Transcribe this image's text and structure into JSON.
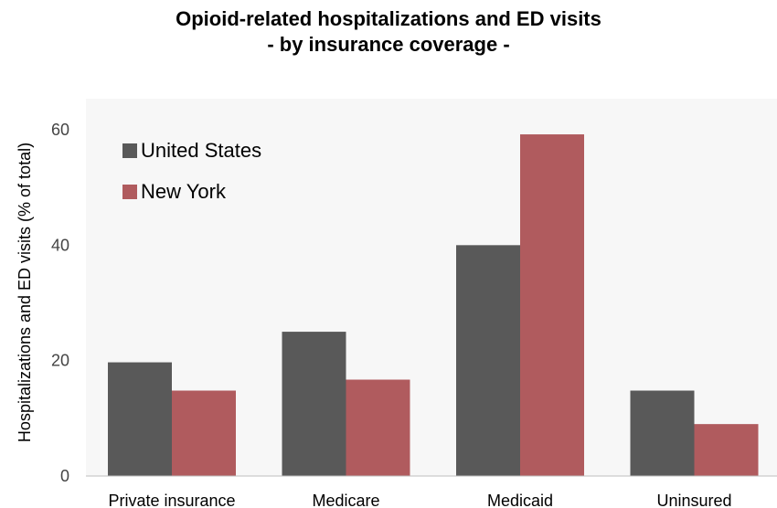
{
  "chart_data": {
    "type": "bar",
    "title": "Opioid-related hospitalizations and ED visits",
    "subtitle": "- by insurance coverage -",
    "xlabel": "",
    "ylabel": "Hospitalizations and ED visits (% of total)",
    "categories": [
      "Private insurance",
      "Medicare",
      "Medicaid",
      "Uninsured"
    ],
    "series": [
      {
        "name": "United States",
        "color": "#595959",
        "values": [
          19.7,
          25.0,
          40.0,
          14.8
        ]
      },
      {
        "name": "New York",
        "color": "#b05b5e",
        "values": [
          14.8,
          16.7,
          59.2,
          9.0
        ]
      }
    ],
    "ylim": [
      0,
      60
    ],
    "yticks": [
      0,
      20,
      40,
      60
    ],
    "grid": false,
    "legend_position": "top-left",
    "plot_background": "#f7f7f7"
  }
}
